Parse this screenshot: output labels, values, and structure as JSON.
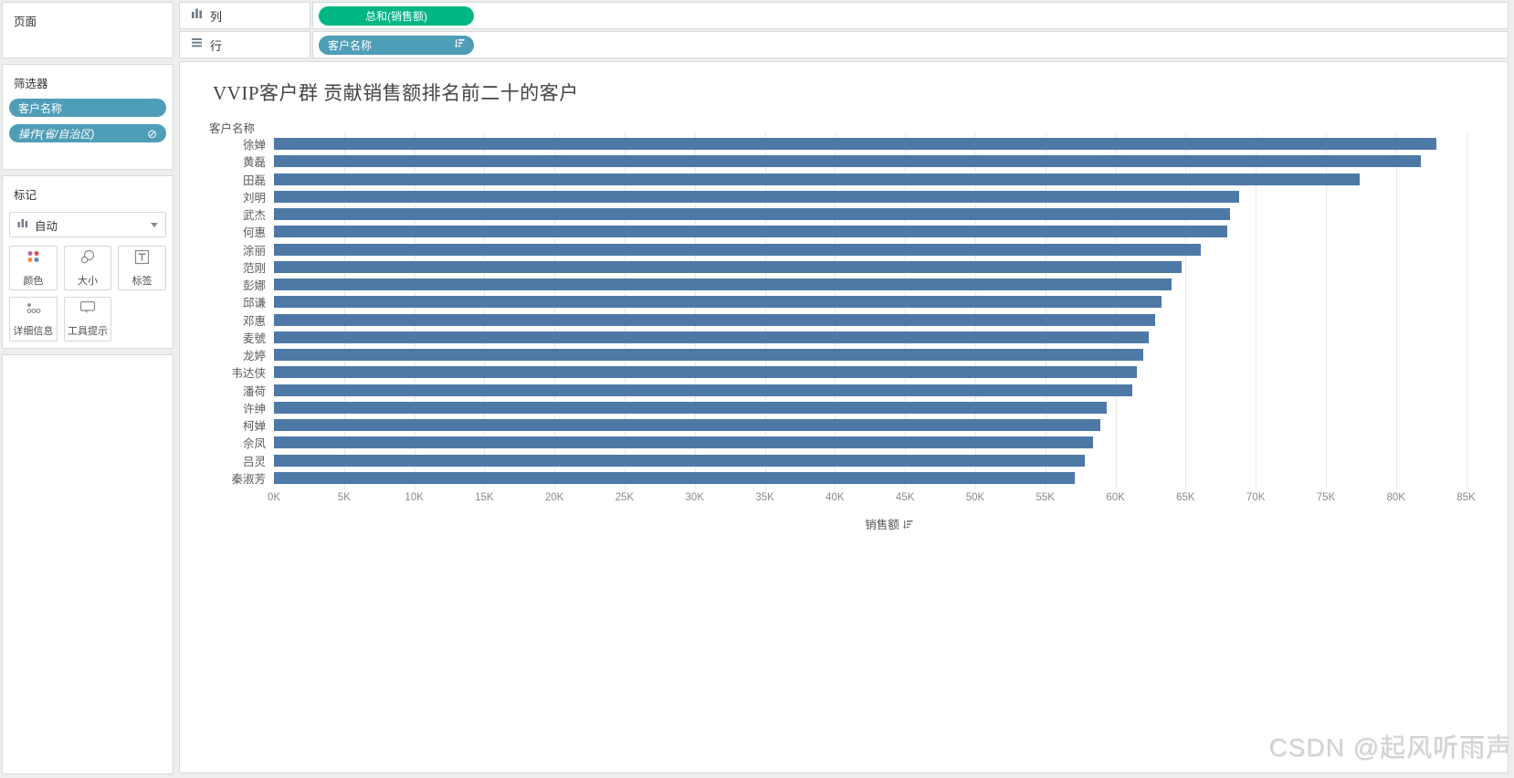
{
  "pages": {
    "title": "页面"
  },
  "filters": {
    "title": "筛选器",
    "pills": [
      {
        "label": "客户名称",
        "italic": false
      },
      {
        "label": "操作(省/自治区)",
        "italic": true,
        "icon": "exclude-icon",
        "icon_glyph": "⊘"
      }
    ]
  },
  "marks": {
    "title": "标记",
    "mark_type": "自动",
    "mark_type_icon": "bar-chart-icon",
    "buttons": [
      {
        "label": "颜色",
        "icon": "color-dots-icon"
      },
      {
        "label": "大小",
        "icon": "size-circles-icon"
      },
      {
        "label": "标签",
        "icon": "label-t-icon"
      },
      {
        "label": "详细信息",
        "icon": "detail-dots-icon"
      },
      {
        "label": "工具提示",
        "icon": "tooltip-bubble-icon"
      }
    ]
  },
  "shelves": {
    "columns_label": "列",
    "rows_label": "行",
    "columns_pill": "总和(销售额)",
    "rows_pill": "客户名称"
  },
  "colors": {
    "measure_pill": "#00b784",
    "dimension_pill": "#4f9eb8",
    "bar": "#4e79a7",
    "color_icon_dots": [
      "#b0699f",
      "#e2504e",
      "#f28e2b",
      "#5a8ac6"
    ]
  },
  "chart_data": {
    "type": "bar",
    "orientation": "horizontal",
    "title": "VVIP客户群 贡献销售额排名前二十的客户",
    "row_header": "客户名称",
    "xlabel": "销售额",
    "sorted": "descending",
    "categories": [
      "徐婵",
      "黄磊",
      "田磊",
      "刘明",
      "武杰",
      "何惠",
      "涂丽",
      "范刚",
      "彭娜",
      "邱谦",
      "邓惠",
      "麦號",
      "龙婷",
      "韦达侠",
      "潘荷",
      "许绅",
      "柯婵",
      "佘凤",
      "吕灵",
      "秦淑芳"
    ],
    "values": [
      82900,
      81800,
      77400,
      68800,
      68200,
      68000,
      66100,
      64700,
      64000,
      63300,
      62800,
      62400,
      62000,
      61500,
      61200,
      59400,
      58900,
      58400,
      57800,
      57100
    ],
    "xlim": [
      0,
      87700
    ],
    "tick_min": 0,
    "tick_max": 85000,
    "tick_step": 5000,
    "tick_suffix": "K",
    "grid": true
  },
  "watermark": "CSDN @起风听雨声"
}
